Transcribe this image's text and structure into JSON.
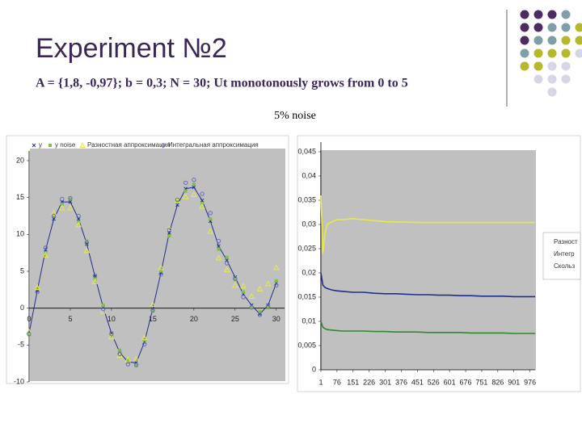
{
  "title": "Experiment №2",
  "subtitle": "A = {1,8, -0,97}; b = 0,3; N = 30; Ut monotonously grows from 0 to 5",
  "caption": "5% noise",
  "chart_data": [
    {
      "type": "line",
      "legend": "top",
      "x": [
        0,
        1,
        2,
        3,
        4,
        5,
        6,
        7,
        8,
        9,
        10,
        11,
        12,
        13,
        14,
        15,
        16,
        17,
        18,
        19,
        20,
        21,
        22,
        23,
        24,
        25,
        26,
        27,
        28,
        29,
        30
      ],
      "xlim": [
        0,
        31
      ],
      "xticks": [
        0,
        5,
        10,
        15,
        20,
        25,
        30
      ],
      "ylim": [
        -10,
        20
      ],
      "yticks": [
        -10,
        -5,
        0,
        5,
        10,
        15,
        20
      ],
      "series": [
        {
          "name": "y",
          "color": "#1f2f8a",
          "marker": "x",
          "show_line": true,
          "values": [
            -3.4,
            2.4,
            7.9,
            12.1,
            14.4,
            14.4,
            12.1,
            8.7,
            4.3,
            0.1,
            -3.4,
            -6,
            -7.3,
            -7.4,
            -4.6,
            -0.1,
            4.8,
            10.2,
            14,
            16.2,
            16.4,
            14.6,
            11.8,
            8.4,
            6.5,
            4.2,
            1.9,
            0.4,
            -0.8,
            0.4,
            3.4
          ]
        },
        {
          "name": "y noise",
          "color": "#7cc242",
          "marker": "square",
          "show_line": false,
          "values": [
            -3.6,
            2.6,
            7.5,
            12.5,
            14.1,
            14.8,
            11.7,
            9.1,
            4.0,
            0.4,
            -3.7,
            -5.7,
            -7.0,
            -7.8,
            -4.3,
            -0.4,
            5.1,
            9.8,
            14.4,
            15.9,
            16.8,
            14.2,
            12.1,
            8.0,
            6.9,
            3.9,
            2.2,
            0.1,
            -0.5,
            0.1,
            3.7
          ]
        },
        {
          "name": "Разностная аппроксимация",
          "color": "#e8e84a",
          "marker": "triangle",
          "show_line": false,
          "values": [
            -3.2,
            2.8,
            7.2,
            12.9,
            13.6,
            13.6,
            11.3,
            7.8,
            3.6,
            -0.4,
            -3.9,
            -6.4,
            -7.0,
            -6.9,
            -4.0,
            0.5,
            5.5,
            10.8,
            14.6,
            15.1,
            15.4,
            13.8,
            10.4,
            6.8,
            5.2,
            3.1,
            3.0,
            1.6,
            2.6,
            3.3,
            5.5
          ]
        },
        {
          "name": "Интегральная аппроксимация",
          "color": "#6a6ab8",
          "marker": "circle",
          "show_line": false,
          "values": [
            -3.5,
            2.2,
            8.2,
            12.5,
            14.8,
            14.9,
            12.5,
            8.9,
            4.4,
            -0.1,
            -3.5,
            -6.2,
            -7.6,
            -7.7,
            -4.9,
            -0.3,
            4.6,
            10.6,
            14.7,
            17.0,
            17.4,
            15.5,
            12.9,
            9.1,
            6.1,
            4.0,
            1.5,
            0.1,
            -0.9,
            0.2,
            3.1
          ]
        }
      ]
    },
    {
      "type": "line",
      "legend": "right",
      "x": [
        1,
        10,
        20,
        30,
        50,
        75,
        100,
        150,
        200,
        250,
        300,
        350,
        400,
        450,
        500,
        550,
        600,
        650,
        700,
        750,
        800,
        850,
        900,
        950,
        1000
      ],
      "xlim": [
        1,
        1000
      ],
      "xticks": [
        1,
        76,
        151,
        226,
        301,
        376,
        451,
        526,
        601,
        676,
        751,
        826,
        901,
        976
      ],
      "ylim": [
        0,
        0.045
      ],
      "yticks": [
        0,
        {
          "value": 0.005,
          "label": "0,005"
        },
        {
          "value": 0.01,
          "label": "0,01"
        },
        {
          "value": 0.015,
          "label": "0,015"
        },
        {
          "value": 0.02,
          "label": "0,02"
        },
        {
          "value": 0.025,
          "label": "0,025"
        },
        {
          "value": 0.03,
          "label": "0,03"
        },
        {
          "value": 0.035,
          "label": "0,035"
        },
        {
          "value": 0.04,
          "label": "0,04"
        },
        {
          "value": 0.045,
          "label": "0,045"
        }
      ],
      "series": [
        {
          "name": "Разност",
          "color": "#e8e84a",
          "show_line": true,
          "values": [
            0.036,
            0.024,
            0.028,
            0.03,
            0.0305,
            0.031,
            0.031,
            0.0312,
            0.031,
            0.0308,
            0.0306,
            0.0305,
            0.0305,
            0.0304,
            0.0304,
            0.0304,
            0.0304,
            0.0304,
            0.0304,
            0.0304,
            0.0304,
            0.0304,
            0.0304,
            0.0304,
            0.0304
          ]
        },
        {
          "name": "Интегр",
          "color": "#1f2f8a",
          "show_line": true,
          "values": [
            0.02,
            0.0175,
            0.017,
            0.0168,
            0.0165,
            0.0163,
            0.0162,
            0.016,
            0.016,
            0.0158,
            0.0157,
            0.0157,
            0.0156,
            0.0155,
            0.0155,
            0.0154,
            0.0154,
            0.0153,
            0.0153,
            0.0152,
            0.0152,
            0.0152,
            0.0151,
            0.0151,
            0.0151
          ]
        },
        {
          "name": "Скольз",
          "color": "#2e8a2e",
          "show_line": true,
          "values": [
            0.01,
            0.0088,
            0.0085,
            0.0083,
            0.0082,
            0.0081,
            0.008,
            0.008,
            0.008,
            0.0079,
            0.0079,
            0.0078,
            0.0078,
            0.0078,
            0.0077,
            0.0077,
            0.0077,
            0.0077,
            0.0076,
            0.0076,
            0.0076,
            0.0076,
            0.0075,
            0.0075,
            0.0075
          ]
        }
      ]
    }
  ]
}
